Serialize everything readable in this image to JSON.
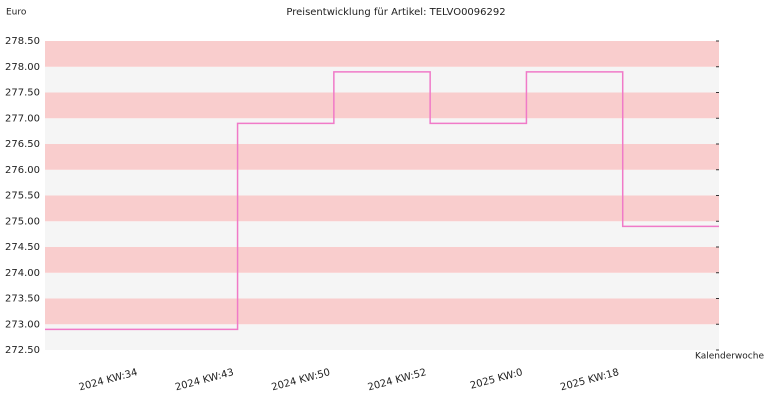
{
  "chart_data": {
    "type": "step",
    "title": "Preisentwicklung für Artikel: TELVO0096292",
    "y_label": "Euro",
    "x_label": "Kalenderwoche",
    "categories": [
      null,
      "2024 KW:34",
      "2024 KW:43",
      "2024 KW:50",
      "2024 KW:52",
      "2025 KW:0",
      "2025 KW:18"
    ],
    "series": [
      {
        "color": "#f07ac8",
        "values": [
          272.9,
          272.9,
          276.9,
          277.9,
          276.9,
          277.9,
          274.9
        ]
      }
    ],
    "ylim": [
      272.5,
      278.5
    ],
    "yticks": [
      {
        "value": 272.5,
        "label": "272.50"
      },
      {
        "value": 273,
        "label": "273.00"
      },
      {
        "value": 273.5,
        "label": "273.50"
      },
      {
        "value": 274,
        "label": "274.00"
      },
      {
        "value": 274.5,
        "label": "274.50"
      },
      {
        "value": 275,
        "label": "275.00"
      },
      {
        "value": 275.5,
        "label": "275.50"
      },
      {
        "value": 276,
        "label": "276.00"
      },
      {
        "value": 276.5,
        "label": "276.50"
      },
      {
        "value": 277,
        "label": "277.00"
      },
      {
        "value": 277.5,
        "label": "277.50"
      },
      {
        "value": 278,
        "label": "278.00"
      },
      {
        "value": 278.5,
        "label": "278.50"
      }
    ],
    "band_colors": [
      "#f5f5f5",
      "#f9cdcd"
    ]
  }
}
